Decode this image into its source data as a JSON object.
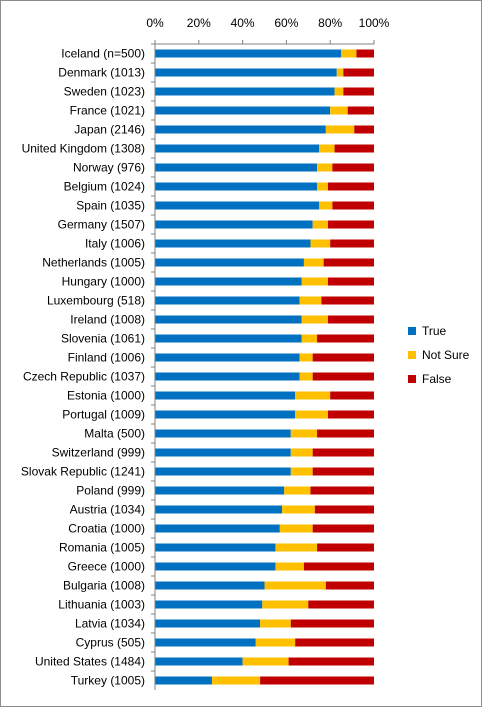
{
  "chart_data": {
    "type": "bar",
    "orientation": "horizontal",
    "stacked": "percent",
    "title": "",
    "xlabel": "",
    "ylabel": "",
    "xlim": [
      0,
      100
    ],
    "x_ticks": [
      0,
      20,
      40,
      60,
      80,
      100
    ],
    "x_tick_labels": [
      "0%",
      "20%",
      "40%",
      "60%",
      "80%",
      "100%"
    ],
    "x_axis_position": "top",
    "grid": false,
    "legend_position": "right",
    "categories": [
      "Iceland (n=500)",
      "Denmark (1013)",
      "Sweden (1023)",
      "France (1021)",
      "Japan (2146)",
      "United Kingdom (1308)",
      "Norway (976)",
      "Belgium (1024)",
      "Spain (1035)",
      "Germany (1507)",
      "Italy (1006)",
      "Netherlands (1005)",
      "Hungary (1000)",
      "Luxembourg (518)",
      "Ireland (1008)",
      "Slovenia (1061)",
      "Finland (1006)",
      "Czech Republic (1037)",
      "Estonia (1000)",
      "Portugal (1009)",
      "Malta (500)",
      "Switzerland (999)",
      "Slovak Republic (1241)",
      "Poland (999)",
      "Austria (1034)",
      "Croatia (1000)",
      "Romania (1005)",
      "Greece (1000)",
      "Bulgaria (1008)",
      "Lithuania (1003)",
      "Latvia (1034)",
      "Cyprus (505)",
      "United States (1484)",
      "Turkey (1005)"
    ],
    "series": [
      {
        "name": "True",
        "color": "#0070c0",
        "values": [
          85,
          83,
          82,
          80,
          78,
          75,
          74,
          74,
          75,
          72,
          71,
          68,
          67,
          66,
          67,
          67,
          66,
          66,
          64,
          64,
          62,
          62,
          62,
          59,
          58,
          57,
          55,
          55,
          50,
          49,
          48,
          46,
          40,
          26
        ]
      },
      {
        "name": "Not Sure",
        "color": "#ffc000",
        "values": [
          7,
          3,
          4,
          8,
          13,
          7,
          7,
          5,
          6,
          7,
          9,
          9,
          12,
          10,
          12,
          7,
          6,
          6,
          16,
          15,
          12,
          10,
          10,
          12,
          15,
          15,
          19,
          13,
          28,
          21,
          14,
          18,
          21,
          22
        ]
      },
      {
        "name": "False",
        "color": "#c00000",
        "values": [
          8,
          14,
          14,
          12,
          9,
          18,
          19,
          21,
          19,
          21,
          20,
          23,
          21,
          24,
          21,
          26,
          28,
          28,
          20,
          21,
          26,
          28,
          28,
          29,
          27,
          28,
          26,
          32,
          22,
          30,
          38,
          36,
          39,
          52
        ]
      }
    ]
  }
}
